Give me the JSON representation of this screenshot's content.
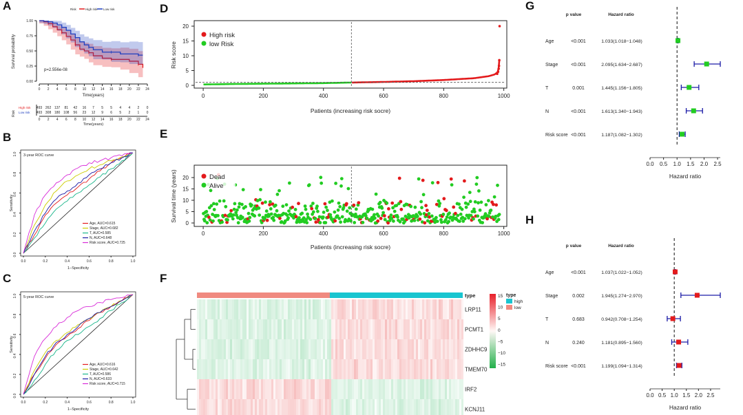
{
  "colors": {
    "high": "#e31a1c",
    "low": "#1f3fbf",
    "green": "#22cc22",
    "forestRed": "#e31a1c",
    "forestBlue": "#1a1aa6",
    "cyan": "#19c5d0",
    "salmon": "#f08a80"
  },
  "panel_letters": [
    "A",
    "B",
    "C",
    "D",
    "E",
    "F",
    "G",
    "H"
  ],
  "chart_data": [
    {
      "id": "A",
      "type": "line",
      "legend_title": "Risk",
      "legend": [
        "High risk",
        "Low risk"
      ],
      "ylabel": "Survival probability",
      "xlabel": "Time(years)",
      "xticks": [
        "0",
        "2",
        "4",
        "6",
        "8",
        "10",
        "12",
        "14",
        "16",
        "18",
        "20",
        "22",
        "24"
      ],
      "yticks": [
        "0.00",
        "0.25",
        "0.50",
        "0.75",
        "1.00"
      ],
      "xlim": [
        0,
        24
      ],
      "ylim": [
        0,
        1
      ],
      "pvalue": "p=2.556e-08",
      "series": [
        {
          "name": "High risk",
          "x": [
            0,
            1,
            2,
            3,
            4,
            5,
            6,
            7,
            8,
            9,
            10,
            11,
            12,
            14,
            16,
            18,
            20,
            22,
            23
          ],
          "y": [
            1,
            0.98,
            0.95,
            0.9,
            0.85,
            0.8,
            0.74,
            0.68,
            0.6,
            0.53,
            0.5,
            0.47,
            0.42,
            0.38,
            0.36,
            0.36,
            0.33,
            0.28,
            0.22
          ]
        },
        {
          "name": "Low risk",
          "x": [
            0,
            1,
            2,
            3,
            4,
            5,
            6,
            7,
            8,
            9,
            10,
            11,
            12,
            14,
            16,
            18,
            20,
            22,
            23
          ],
          "y": [
            1,
            0.99,
            0.98,
            0.96,
            0.93,
            0.89,
            0.84,
            0.78,
            0.72,
            0.65,
            0.6,
            0.56,
            0.52,
            0.48,
            0.48,
            0.45,
            0.45,
            0.43,
            0.43
          ]
        }
      ],
      "risk_table": {
        "label": "Risk",
        "title": "Time(years)",
        "rows": [
          {
            "name": "High risk",
            "values": [
              "493",
              "262",
              "137",
              "81",
              "42",
              "16",
              "7",
              "5",
              "5",
              "4",
              "4",
              "2",
              "0"
            ]
          },
          {
            "name": "Low risk",
            "values": [
              "493",
              "308",
              "180",
              "108",
              "56",
              "23",
              "12",
              "9",
              "6",
              "5",
              "2",
              "1",
              "0"
            ]
          }
        ]
      }
    },
    {
      "id": "B",
      "type": "line",
      "title": "3-year ROC curve",
      "xlabel": "1−Specificity",
      "ylabel": "Sensitivity",
      "ticks": [
        "0.0",
        "0.2",
        "0.4",
        "0.6",
        "0.8",
        "1.0"
      ],
      "series": [
        {
          "name": "Age, AUC=0.615",
          "color": "#e31a1c",
          "x": [
            0,
            0.1,
            0.2,
            0.3,
            0.4,
            0.5,
            0.6,
            0.7,
            0.8,
            0.9,
            1
          ],
          "y": [
            0,
            0.18,
            0.38,
            0.5,
            0.58,
            0.66,
            0.74,
            0.82,
            0.9,
            0.95,
            1
          ]
        },
        {
          "name": "Stage, AUC=0.682",
          "color": "#cccc00",
          "x": [
            0,
            0.1,
            0.2,
            0.3,
            0.4,
            0.5,
            0.6,
            0.7,
            0.8,
            0.9,
            1
          ],
          "y": [
            0,
            0.28,
            0.48,
            0.62,
            0.72,
            0.78,
            0.84,
            0.88,
            0.92,
            0.96,
            1
          ]
        },
        {
          "name": "T, AUC=0.585",
          "color": "#19b58a",
          "x": [
            0,
            0.1,
            0.2,
            0.3,
            0.4,
            0.5,
            0.6,
            0.7,
            0.8,
            0.9,
            1
          ],
          "y": [
            0,
            0.15,
            0.3,
            0.44,
            0.52,
            0.6,
            0.68,
            0.76,
            0.84,
            0.92,
            1
          ]
        },
        {
          "name": "N, AUC=0.648",
          "color": "#1a1aa6",
          "x": [
            0,
            0.1,
            0.2,
            0.3,
            0.4,
            0.5,
            0.6,
            0.7,
            0.8,
            0.9,
            1
          ],
          "y": [
            0,
            0.22,
            0.4,
            0.54,
            0.62,
            0.7,
            0.78,
            0.84,
            0.9,
            0.95,
            1
          ]
        },
        {
          "name": "Risk score, AUC=0.725",
          "color": "#d82ad8",
          "x": [
            0,
            0.1,
            0.2,
            0.3,
            0.4,
            0.5,
            0.6,
            0.7,
            0.8,
            0.9,
            1
          ],
          "y": [
            0,
            0.38,
            0.58,
            0.7,
            0.78,
            0.85,
            0.9,
            0.92,
            0.95,
            0.97,
            1
          ]
        }
      ]
    },
    {
      "id": "C",
      "type": "line",
      "title": "5-year ROC curve",
      "xlabel": "1−Specificity",
      "ylabel": "Sensitivity",
      "ticks": [
        "0.0",
        "0.2",
        "0.4",
        "0.6",
        "0.8",
        "1.0"
      ],
      "series": [
        {
          "name": "Age, AUC=0.616",
          "color": "#e31a1c",
          "x": [
            0,
            0.1,
            0.2,
            0.3,
            0.4,
            0.5,
            0.6,
            0.7,
            0.8,
            0.9,
            1
          ],
          "y": [
            0,
            0.2,
            0.36,
            0.5,
            0.58,
            0.66,
            0.74,
            0.82,
            0.88,
            0.94,
            1
          ]
        },
        {
          "name": "Stage, AUC=0.642",
          "color": "#cccc00",
          "x": [
            0,
            0.1,
            0.2,
            0.3,
            0.4,
            0.5,
            0.6,
            0.7,
            0.8,
            0.9,
            1
          ],
          "y": [
            0,
            0.24,
            0.42,
            0.54,
            0.62,
            0.7,
            0.76,
            0.82,
            0.88,
            0.94,
            1
          ]
        },
        {
          "name": "T, AUC=0.586",
          "color": "#19b58a",
          "x": [
            0,
            0.1,
            0.2,
            0.3,
            0.4,
            0.5,
            0.6,
            0.7,
            0.8,
            0.9,
            1
          ],
          "y": [
            0,
            0.14,
            0.3,
            0.44,
            0.54,
            0.6,
            0.68,
            0.76,
            0.84,
            0.92,
            1
          ]
        },
        {
          "name": "N, AUC=0.633",
          "color": "#1a1aa6",
          "x": [
            0,
            0.1,
            0.2,
            0.3,
            0.4,
            0.5,
            0.6,
            0.7,
            0.8,
            0.9,
            1
          ],
          "y": [
            0,
            0.2,
            0.38,
            0.52,
            0.6,
            0.68,
            0.76,
            0.82,
            0.88,
            0.94,
            1
          ]
        },
        {
          "name": "Risk score, AUC=0.715",
          "color": "#d82ad8",
          "x": [
            0,
            0.1,
            0.2,
            0.3,
            0.4,
            0.5,
            0.6,
            0.7,
            0.8,
            0.9,
            1
          ],
          "y": [
            0,
            0.38,
            0.56,
            0.68,
            0.77,
            0.84,
            0.88,
            0.92,
            0.95,
            0.97,
            1
          ]
        }
      ]
    },
    {
      "id": "D",
      "type": "scatter",
      "ylabel": "Risk score",
      "xlabel": "Patients (increasing risk socre)",
      "xticks": [
        "0",
        "200",
        "400",
        "600",
        "800",
        "1000"
      ],
      "yticks": [
        "0",
        "5",
        "10",
        "15",
        "20"
      ],
      "xlim": [
        -30,
        1010
      ],
      "ylim": [
        -1,
        21
      ],
      "cutoff_index": 493,
      "cutoff_score": 1.0,
      "n": 986,
      "legend": [
        "High risk",
        "low Risk"
      ],
      "curve_points": [
        [
          1,
          0.3
        ],
        [
          100,
          0.45
        ],
        [
          200,
          0.55
        ],
        [
          300,
          0.65
        ],
        [
          400,
          0.75
        ],
        [
          493,
          0.95
        ],
        [
          600,
          1.15
        ],
        [
          700,
          1.4
        ],
        [
          800,
          1.8
        ],
        [
          900,
          2.4
        ],
        [
          950,
          3.1
        ],
        [
          970,
          3.7
        ],
        [
          980,
          4.5
        ],
        [
          983,
          6
        ],
        [
          985,
          8.5
        ],
        [
          986,
          20
        ]
      ]
    },
    {
      "id": "E",
      "type": "scatter",
      "ylabel": "Survival time (years)",
      "xlabel": "Patients (increasing risk socre)",
      "xticks": [
        "0",
        "200",
        "400",
        "600",
        "800",
        "1000"
      ],
      "yticks": [
        "0",
        "5",
        "10",
        "15",
        "20"
      ],
      "xlim": [
        -30,
        1010
      ],
      "ylim": [
        -1,
        24
      ],
      "cutoff_index": 493,
      "n": 986,
      "legend": [
        "Dead",
        "Alive"
      ]
    },
    {
      "id": "F",
      "type": "heatmap",
      "genes": [
        "LRP11",
        "PCMT1",
        "ZDHHC9",
        "TMEM70",
        "IRF2",
        "KCNJ11"
      ],
      "annotation_label": "type",
      "type_legend_title": "type",
      "type_legend": [
        "high",
        "low"
      ],
      "scale": [
        "15",
        "10",
        "5",
        "0",
        "−5",
        "−10",
        "−15"
      ],
      "row_sign_low": [
        -1,
        -1,
        -1,
        -1,
        1,
        1
      ]
    },
    {
      "id": "G",
      "type": "forest",
      "col_p": "p value",
      "col_hr": "Hazard ratio",
      "xlabel": "Hazard ratio",
      "xticks": [
        "0.0",
        "0.5",
        "1.0",
        "1.5",
        "2.0",
        "2.5"
      ],
      "xlim": [
        0,
        2.6
      ],
      "rows": [
        {
          "name": "Age",
          "p": "<0.001",
          "hr_text": "1.033(1.018−1.048)",
          "hr": 1.033,
          "lo": 1.018,
          "hi": 1.048
        },
        {
          "name": "Stage",
          "p": "<0.001",
          "hr_text": "2.095(1.634−2.687)",
          "hr": 2.095,
          "lo": 1.634,
          "hi": 2.687
        },
        {
          "name": "T",
          "p": "0.001",
          "hr_text": "1.445(1.156−1.805)",
          "hr": 1.445,
          "lo": 1.156,
          "hi": 1.805
        },
        {
          "name": "N",
          "p": "<0.001",
          "hr_text": "1.613(1.340−1.943)",
          "hr": 1.613,
          "lo": 1.34,
          "hi": 1.943
        },
        {
          "name": "Risk score",
          "p": "<0.001",
          "hr_text": "1.187(1.082−1.302)",
          "hr": 1.187,
          "lo": 1.082,
          "hi": 1.302
        }
      ]
    },
    {
      "id": "H",
      "type": "forest",
      "col_p": "p value",
      "col_hr": "Hazard ratio",
      "xlabel": "Hazard ratio",
      "xticks": [
        "0.0",
        "0.5",
        "1.0",
        "1.5",
        "2.0",
        "2.5"
      ],
      "xlim": [
        0,
        2.9
      ],
      "rows": [
        {
          "name": "Age",
          "p": "<0.001",
          "hr_text": "1.037(1.022−1.052)",
          "hr": 1.037,
          "lo": 1.022,
          "hi": 1.052
        },
        {
          "name": "Stage",
          "p": "0.002",
          "hr_text": "1.945(1.274−2.970)",
          "hr": 1.945,
          "lo": 1.274,
          "hi": 2.97
        },
        {
          "name": "T",
          "p": "0.683",
          "hr_text": "0.942(0.708−1.254)",
          "hr": 0.942,
          "lo": 0.708,
          "hi": 1.254
        },
        {
          "name": "N",
          "p": "0.240",
          "hr_text": "1.181(0.895−1.560)",
          "hr": 1.181,
          "lo": 0.895,
          "hi": 1.56
        },
        {
          "name": "Risk score",
          "p": "<0.001",
          "hr_text": "1.199(1.094−1.314)",
          "hr": 1.199,
          "lo": 1.094,
          "hi": 1.314
        }
      ]
    }
  ]
}
